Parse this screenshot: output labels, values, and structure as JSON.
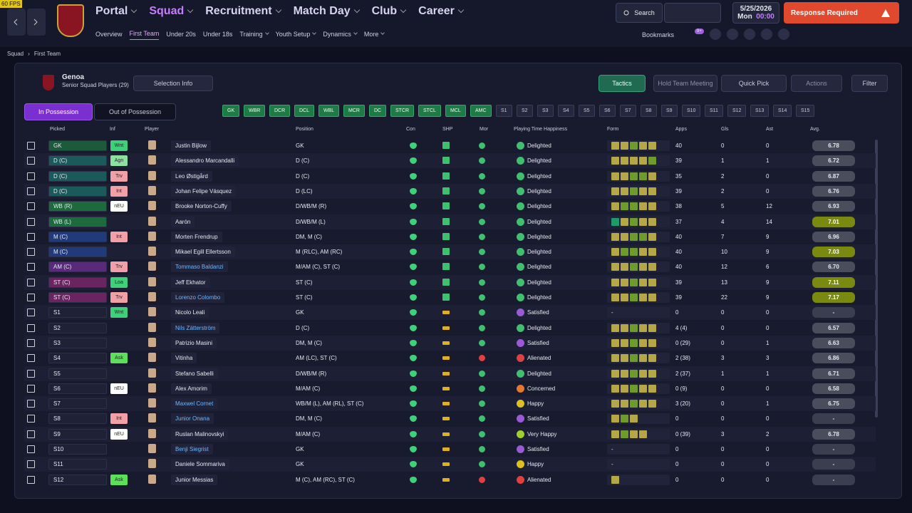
{
  "fps": "60 FPS",
  "nav": {
    "main": [
      "Portal",
      "Squad",
      "Recruitment",
      "Match Day",
      "Club",
      "Career"
    ],
    "active_main": 1,
    "sub": [
      "Overview",
      "First Team",
      "Under 20s",
      "Under 18s",
      "Training",
      "Youth Setup",
      "Dynamics",
      "More"
    ],
    "active_sub": 1
  },
  "top": {
    "search": "Search",
    "date": "5/25/2026",
    "day": "Mon",
    "time": "00:00",
    "alert": "Response Required",
    "bookmarks": "Bookmarks",
    "badge": "9+"
  },
  "breadcrumb": [
    "Squad",
    "First Team"
  ],
  "club": {
    "name": "Genoa",
    "subtitle": "Senior Squad Players (29)"
  },
  "toolbar": {
    "selection_info": "Selection Info",
    "tactics": "Tactics",
    "meeting": "Hold Team Meeting",
    "quick_pick": "Quick Pick",
    "actions": "Actions",
    "filter": "Filter"
  },
  "tabs": [
    "In Possession",
    "Out of Possession"
  ],
  "positions": {
    "filled": [
      "GK",
      "WBR",
      "DCR",
      "DCL",
      "WBL",
      "MCR",
      "DC",
      "STCR",
      "STCL",
      "MCL",
      "AMC"
    ],
    "subs": [
      "S1",
      "S2",
      "S3",
      "S4",
      "S5",
      "S6",
      "S7",
      "S8",
      "S9",
      "S10",
      "S11",
      "S12",
      "S13",
      "S14",
      "S15"
    ]
  },
  "table": {
    "columns": [
      "Picked",
      "Inf",
      "Player",
      "Position",
      "Con",
      "SHP",
      "Mor",
      "Playing Time Happiness",
      "Form",
      "Apps",
      "Gls",
      "Ast",
      "Avg."
    ],
    "rows": [
      {
        "picked": "GK",
        "inf": "Wnt",
        "player": "Justin Bijlow",
        "position": "GK",
        "happiness": "Delighted",
        "form": [
          "#b5a648",
          "#b5a648",
          "#6f9a2c",
          "#b5a648",
          "#b5a648"
        ],
        "apps": "40",
        "gls": 0,
        "ast": 0,
        "avg": "6.78"
      },
      {
        "picked": "D (C)",
        "inf": "Agn",
        "player": "Alessandro Marcandalli",
        "position": "D (C)",
        "happiness": "Delighted",
        "form": [
          "#b5a648",
          "#b5a648",
          "#b5a648",
          "#b5a648",
          "#6f9a2c"
        ],
        "apps": "39",
        "gls": 1,
        "ast": 1,
        "avg": "6.72"
      },
      {
        "picked": "D (C)",
        "inf": "Trv",
        "player": "Leo Østigård",
        "position": "D (C)",
        "happiness": "Delighted",
        "form": [
          "#b5a648",
          "#b5a648",
          "#6f9a2c",
          "#6f9a2c",
          "#b5a648"
        ],
        "apps": "35",
        "gls": 2,
        "ast": 0,
        "avg": "6.87"
      },
      {
        "picked": "D (C)",
        "inf": "Int",
        "player": "Johan Felipe Vásquez",
        "position": "D (LC)",
        "happiness": "Delighted",
        "form": [
          "#b5a648",
          "#b5a648",
          "#6f9a2c",
          "#b5a648",
          "#b5a648"
        ],
        "apps": "39",
        "gls": 2,
        "ast": 0,
        "avg": "6.76"
      },
      {
        "picked": "WB (R)",
        "inf": "nEU",
        "player": "Brooke Norton-Cuffy",
        "position": "D/WB/M (R)",
        "happiness": "Delighted",
        "form": [
          "#b5a648",
          "#6f9a2c",
          "#6f9a2c",
          "#b5a648",
          "#b5a648"
        ],
        "apps": "38",
        "gls": 5,
        "ast": 12,
        "avg": "6.93"
      },
      {
        "picked": "WB (L)",
        "player": "Aarón",
        "position": "D/WB/M (L)",
        "happiness": "Delighted",
        "form": [
          "#1f9a6a",
          "#b5a648",
          "#6f9a2c",
          "#b5a648",
          "#b5a648"
        ],
        "apps": "37",
        "gls": 4,
        "ast": 14,
        "avg": "7.01"
      },
      {
        "picked": "M (C)",
        "inf": "Int",
        "player": "Morten Frendrup",
        "position": "DM, M (C)",
        "happiness": "Delighted",
        "form": [
          "#b5a648",
          "#b5a648",
          "#6f9a2c",
          "#6f9a2c",
          "#b5a648"
        ],
        "apps": "40",
        "gls": 7,
        "ast": 9,
        "avg": "6.96"
      },
      {
        "picked": "M (C)",
        "player": "Mikael Egill Ellertsson",
        "position": "M (RLC), AM (RC)",
        "happiness": "Delighted",
        "form": [
          "#b5a648",
          "#6f9a2c",
          "#6f9a2c",
          "#b5a648",
          "#b5a648"
        ],
        "apps": "40",
        "gls": 10,
        "ast": 9,
        "avg": "7.03"
      },
      {
        "picked": "AM (C)",
        "inf": "Trv",
        "player": "Tommaso Baldanzi",
        "highlight": true,
        "position": "M/AM (C), ST (C)",
        "happiness": "Delighted",
        "form": [
          "#b5a648",
          "#b5a648",
          "#6f9a2c",
          "#b5a648",
          "#b5a648"
        ],
        "apps": "40",
        "gls": 12,
        "ast": 6,
        "avg": "6.70"
      },
      {
        "picked": "ST (C)",
        "inf": "Loa",
        "player": "Jeff Ekhator",
        "position": "ST (C)",
        "happiness": "Delighted",
        "form": [
          "#b5a648",
          "#b5a648",
          "#6f9a2c",
          "#b5a648",
          "#b5a648"
        ],
        "apps": "39",
        "gls": 13,
        "ast": 9,
        "avg": "7.11"
      },
      {
        "picked": "ST (C)",
        "inf": "Trv",
        "player": "Lorenzo Colombo",
        "highlight": true,
        "position": "ST (C)",
        "happiness": "Delighted",
        "form": [
          "#b5a648",
          "#b5a648",
          "#6f9a2c",
          "#b5a648",
          "#b5a648"
        ],
        "apps": "39",
        "gls": 22,
        "ast": 9,
        "avg": "7.17"
      },
      {
        "picked": "S1",
        "inf": "Wnt",
        "player": "Nicolo Leali",
        "position": "GK",
        "happiness": "Satisfied",
        "form": "-",
        "apps": "0",
        "gls": 0,
        "ast": 0,
        "avg": "-"
      },
      {
        "picked": "S2",
        "player": "Nils Zätterström",
        "highlight": true,
        "position": "D (C)",
        "happiness": "Delighted",
        "form": [
          "#b5a648",
          "#b5a648",
          "#6f9a2c",
          "#b5a648",
          "#b5a648"
        ],
        "apps": "4 (4)",
        "gls": 0,
        "ast": 0,
        "avg": "6.57"
      },
      {
        "picked": "S3",
        "player": "Patrizio Masini",
        "position": "DM, M (C)",
        "happiness": "Satisfied",
        "form": [
          "#b5a648",
          "#b5a648",
          "#6f9a2c",
          "#b5a648",
          "#b5a648"
        ],
        "apps": "0 (29)",
        "gls": 0,
        "ast": 1,
        "avg": "6.63"
      },
      {
        "picked": "S4",
        "inf": "Ask",
        "player": "Vitinha",
        "position": "AM (LC), ST (C)",
        "happiness": "Alienated",
        "form": [
          "#b5a648",
          "#b5a648",
          "#6f9a2c",
          "#b5a648",
          "#b5a648"
        ],
        "apps": "2 (38)",
        "gls": 3,
        "ast": 3,
        "avg": "6.86"
      },
      {
        "picked": "S5",
        "player": "Stefano Sabelli",
        "position": "D/WB/M (R)",
        "happiness": "Delighted",
        "form": [
          "#b5a648",
          "#b5a648",
          "#6f9a2c",
          "#b5a648",
          "#b5a648"
        ],
        "apps": "2 (37)",
        "gls": 1,
        "ast": 1,
        "avg": "6.71"
      },
      {
        "picked": "S6",
        "inf": "nEU",
        "player": "Alex Amorim",
        "position": "M/AM (C)",
        "happiness": "Concerned",
        "form": [
          "#b5a648",
          "#b5a648",
          "#6f9a2c",
          "#b5a648",
          "#b5a648"
        ],
        "apps": "0 (9)",
        "gls": 0,
        "ast": 0,
        "avg": "6.58"
      },
      {
        "picked": "S7",
        "player": "Maxwel Cornet",
        "highlight": true,
        "position": "WB/M (L), AM (RL), ST (C)",
        "happiness": "Happy",
        "form": [
          "#b5a648",
          "#b5a648",
          "#6f9a2c",
          "#b5a648",
          "#b5a648"
        ],
        "apps": "3 (20)",
        "gls": 0,
        "ast": 1,
        "avg": "6.75"
      },
      {
        "picked": "S8",
        "inf": "Int",
        "player": "Junior Onana",
        "highlight": true,
        "position": "DM, M (C)",
        "happiness": "Satisfied",
        "form": [
          "#b5a648",
          "#6f9a2c",
          "#b5a648"
        ],
        "apps": "0",
        "gls": 0,
        "ast": 0,
        "avg": "-"
      },
      {
        "picked": "S9",
        "inf": "nEU",
        "player": "Ruslan Malinovskyi",
        "position": "M/AM (C)",
        "happiness": "Very Happy",
        "form": [
          "#b5a648",
          "#6f9a2c",
          "#b5a648",
          "#b5a648"
        ],
        "apps": "0 (39)",
        "gls": 3,
        "ast": 2,
        "avg": "6.78"
      },
      {
        "picked": "S10",
        "player": "Benji Siegrist",
        "highlight": true,
        "position": "GK",
        "happiness": "Satisfied",
        "form": "-",
        "apps": "0",
        "gls": 0,
        "ast": 0,
        "avg": "-"
      },
      {
        "picked": "S11",
        "player": "Daniele Sommariva",
        "position": "GK",
        "happiness": "Happy",
        "form": "-",
        "apps": "0",
        "gls": 0,
        "ast": 0,
        "avg": "-"
      },
      {
        "picked": "S12",
        "inf": "Ask",
        "player": "Junior Messias",
        "position": "M (C), AM (RC), ST (C)",
        "happiness": "Alienated",
        "form": [
          "#b5a648"
        ],
        "apps": "0",
        "gls": 0,
        "ast": 0,
        "avg": "-"
      }
    ]
  }
}
